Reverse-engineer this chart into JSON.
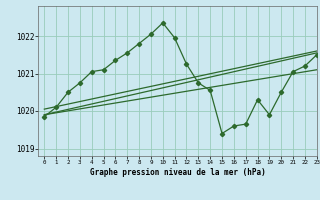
{
  "background_color": "#cce8f0",
  "grid_color": "#99ccbb",
  "line_color": "#2d6a2d",
  "title": "Graphe pression niveau de la mer (hPa)",
  "xlim": [
    -0.5,
    23
  ],
  "ylim": [
    1018.8,
    1022.8
  ],
  "yticks": [
    1019,
    1020,
    1021,
    1022
  ],
  "xticks": [
    0,
    1,
    2,
    3,
    4,
    5,
    6,
    7,
    8,
    9,
    10,
    11,
    12,
    13,
    14,
    15,
    16,
    17,
    18,
    19,
    20,
    21,
    22,
    23
  ],
  "series_solid": [
    {
      "x": [
        0,
        23
      ],
      "y": [
        1019.9,
        1021.1
      ]
    },
    {
      "x": [
        0,
        23
      ],
      "y": [
        1019.9,
        1021.55
      ]
    },
    {
      "x": [
        0,
        23
      ],
      "y": [
        1020.05,
        1021.6
      ]
    }
  ],
  "series_marker": {
    "x": [
      0,
      1,
      2,
      3,
      4,
      5,
      6,
      7,
      8,
      9,
      10,
      11,
      12,
      13,
      14,
      15,
      16,
      17,
      18,
      19,
      20,
      21,
      22,
      23
    ],
    "y": [
      1019.85,
      1020.1,
      1020.5,
      1020.75,
      1021.05,
      1021.1,
      1021.35,
      1021.55,
      1021.8,
      1022.05,
      1022.35,
      1021.95,
      1021.25,
      1020.75,
      1020.55,
      1019.4,
      1019.6,
      1019.65,
      1020.3,
      1019.9,
      1020.5,
      1021.05,
      1021.2,
      1021.5
    ]
  }
}
